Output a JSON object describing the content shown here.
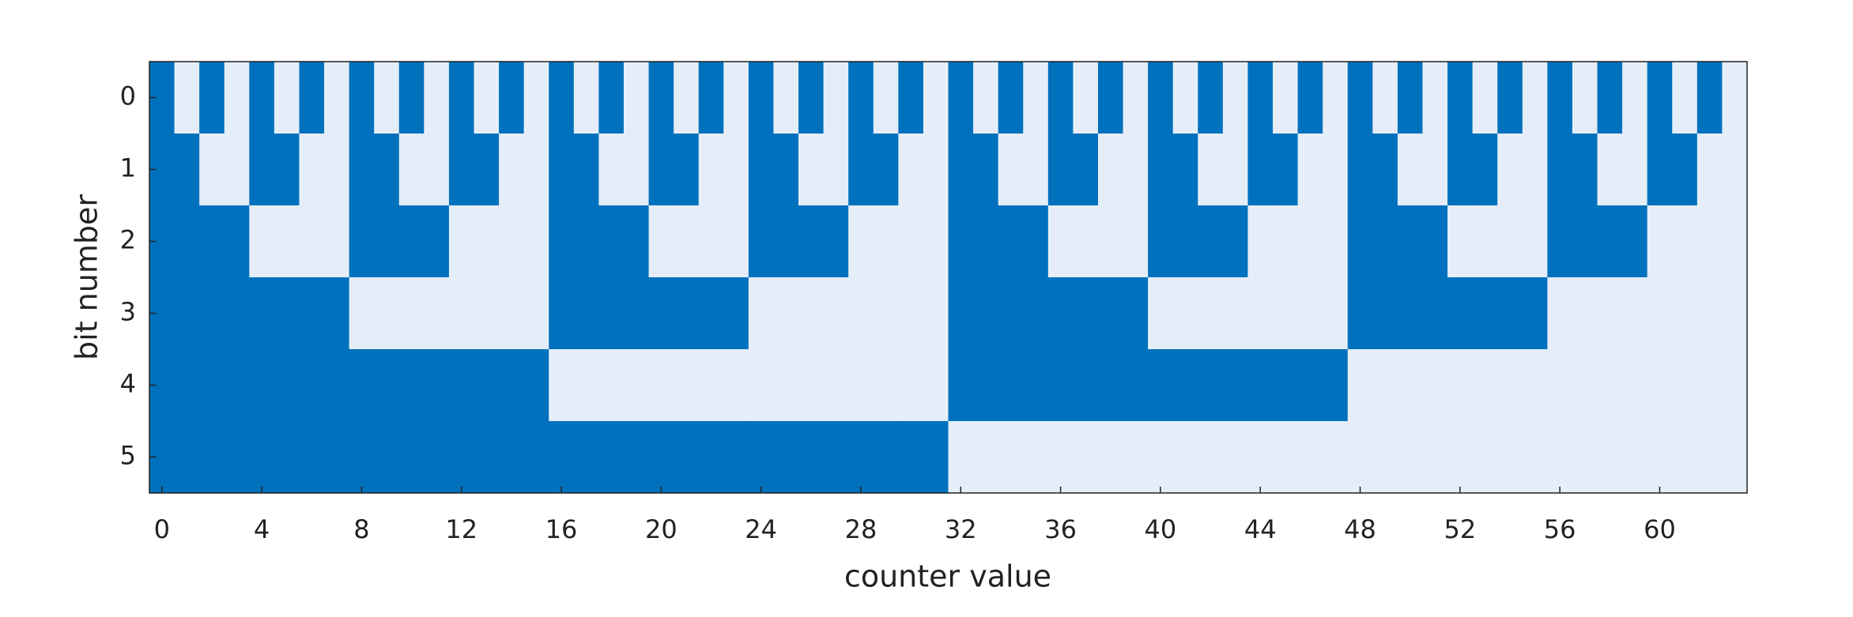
{
  "chart_data": {
    "type": "heatmap",
    "xlabel": "counter value",
    "ylabel": "bit number",
    "xlim": [
      -0.5,
      63.5
    ],
    "xticks": [
      0,
      4,
      8,
      12,
      16,
      20,
      24,
      28,
      32,
      36,
      40,
      44,
      48,
      52,
      56,
      60
    ],
    "ylim": [
      -0.5,
      5.5
    ],
    "yticks": [
      0,
      1,
      2,
      3,
      4,
      5
    ],
    "y_inverted": true,
    "colors": [
      "#0071bd",
      "#e5eef8"
    ],
    "values": [
      [
        0,
        1,
        0,
        1,
        0,
        1,
        0,
        1,
        0,
        1,
        0,
        1,
        0,
        1,
        0,
        1,
        0,
        1,
        0,
        1,
        0,
        1,
        0,
        1,
        0,
        1,
        0,
        1,
        0,
        1,
        0,
        1,
        0,
        1,
        0,
        1,
        0,
        1,
        0,
        1,
        0,
        1,
        0,
        1,
        0,
        1,
        0,
        1,
        0,
        1,
        0,
        1,
        0,
        1,
        0,
        1,
        0,
        1,
        0,
        1,
        0,
        1,
        0,
        1
      ],
      [
        0,
        0,
        1,
        1,
        0,
        0,
        1,
        1,
        0,
        0,
        1,
        1,
        0,
        0,
        1,
        1,
        0,
        0,
        1,
        1,
        0,
        0,
        1,
        1,
        0,
        0,
        1,
        1,
        0,
        0,
        1,
        1,
        0,
        0,
        1,
        1,
        0,
        0,
        1,
        1,
        0,
        0,
        1,
        1,
        0,
        0,
        1,
        1,
        0,
        0,
        1,
        1,
        0,
        0,
        1,
        1,
        0,
        0,
        1,
        1,
        0,
        0,
        1,
        1
      ],
      [
        0,
        0,
        0,
        0,
        1,
        1,
        1,
        1,
        0,
        0,
        0,
        0,
        1,
        1,
        1,
        1,
        0,
        0,
        0,
        0,
        1,
        1,
        1,
        1,
        0,
        0,
        0,
        0,
        1,
        1,
        1,
        1,
        0,
        0,
        0,
        0,
        1,
        1,
        1,
        1,
        0,
        0,
        0,
        0,
        1,
        1,
        1,
        1,
        0,
        0,
        0,
        0,
        1,
        1,
        1,
        1,
        0,
        0,
        0,
        0,
        1,
        1,
        1,
        1
      ],
      [
        0,
        0,
        0,
        0,
        0,
        0,
        0,
        0,
        1,
        1,
        1,
        1,
        1,
        1,
        1,
        1,
        0,
        0,
        0,
        0,
        0,
        0,
        0,
        0,
        1,
        1,
        1,
        1,
        1,
        1,
        1,
        1,
        0,
        0,
        0,
        0,
        0,
        0,
        0,
        0,
        1,
        1,
        1,
        1,
        1,
        1,
        1,
        1,
        0,
        0,
        0,
        0,
        0,
        0,
        0,
        0,
        1,
        1,
        1,
        1,
        1,
        1,
        1,
        1
      ],
      [
        0,
        0,
        0,
        0,
        0,
        0,
        0,
        0,
        0,
        0,
        0,
        0,
        0,
        0,
        0,
        0,
        1,
        1,
        1,
        1,
        1,
        1,
        1,
        1,
        1,
        1,
        1,
        1,
        1,
        1,
        1,
        1,
        0,
        0,
        0,
        0,
        0,
        0,
        0,
        0,
        0,
        0,
        0,
        0,
        0,
        0,
        0,
        0,
        1,
        1,
        1,
        1,
        1,
        1,
        1,
        1,
        1,
        1,
        1,
        1,
        1,
        1,
        1,
        1
      ],
      [
        0,
        0,
        0,
        0,
        0,
        0,
        0,
        0,
        0,
        0,
        0,
        0,
        0,
        0,
        0,
        0,
        0,
        0,
        0,
        0,
        0,
        0,
        0,
        0,
        0,
        0,
        0,
        0,
        0,
        0,
        0,
        0,
        1,
        1,
        1,
        1,
        1,
        1,
        1,
        1,
        1,
        1,
        1,
        1,
        1,
        1,
        1,
        1,
        1,
        1,
        1,
        1,
        1,
        1,
        1,
        1,
        1,
        1,
        1,
        1,
        1,
        1,
        1,
        1
      ]
    ]
  }
}
